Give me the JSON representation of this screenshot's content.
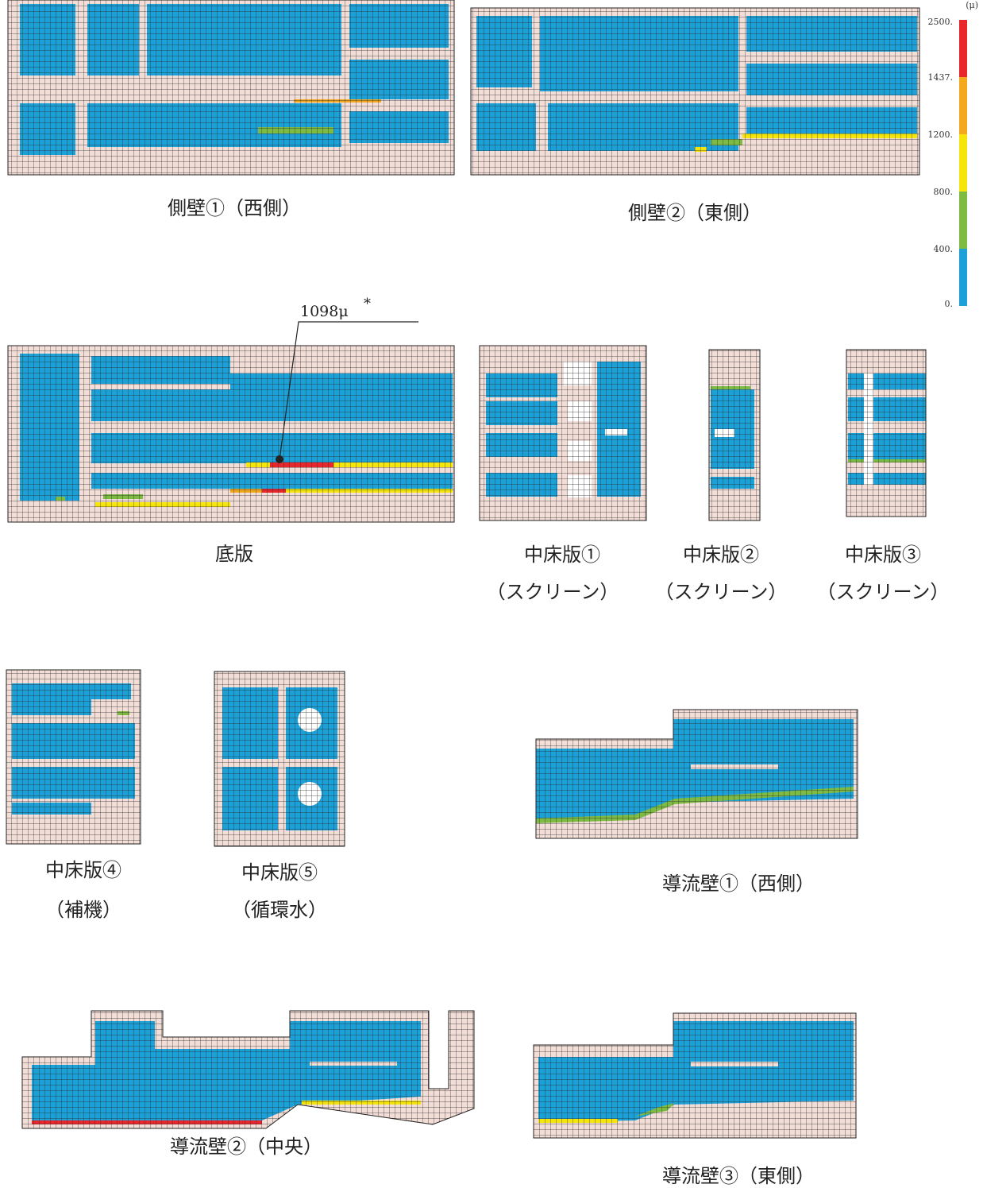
{
  "legend": {
    "unit": "(μ)",
    "labels": [
      "2500.",
      "1437.",
      "1200.",
      "800.",
      "400.",
      "0."
    ]
  },
  "annotation": {
    "value": "1098μ",
    "mark": "*"
  },
  "panels": [
    {
      "title": "側壁①（西側）"
    },
    {
      "title": "側壁②（東側）"
    },
    {
      "title": "底版"
    },
    {
      "title": "中床版①",
      "subtitle": "（スクリーン）"
    },
    {
      "title": "中床版②",
      "subtitle": "（スクリーン）"
    },
    {
      "title": "中床版③",
      "subtitle": "（スクリーン）"
    },
    {
      "title": "中床版④",
      "subtitle": "（補機）"
    },
    {
      "title": "中床版⑤",
      "subtitle": "（循環水）"
    },
    {
      "title": "導流壁①（西側）"
    },
    {
      "title": "導流壁②（中央）"
    },
    {
      "title": "導流壁③（東側）"
    }
  ]
}
